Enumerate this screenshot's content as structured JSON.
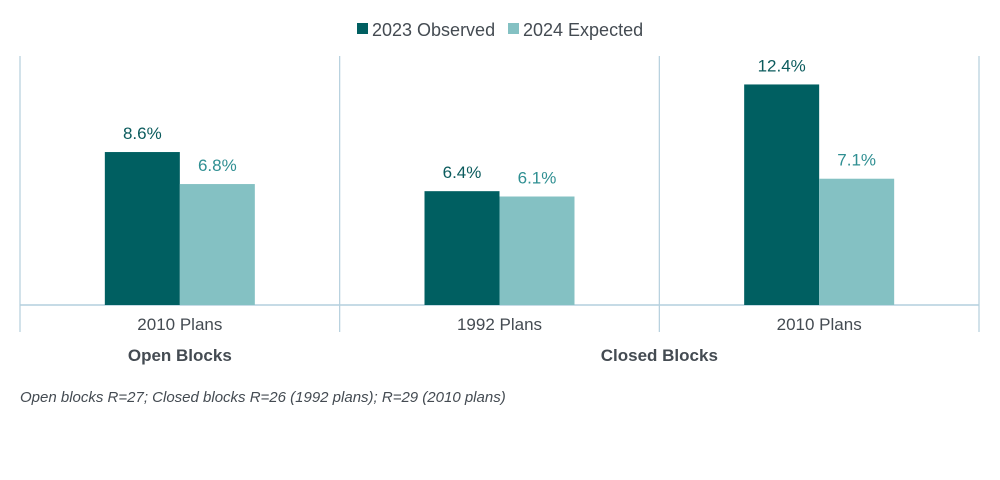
{
  "chart_data": {
    "type": "bar",
    "categories": [
      "2010 Plans",
      "1992 Plans",
      "2010 Plans"
    ],
    "groups": [
      {
        "label": "Open Blocks",
        "categories": [
          0
        ]
      },
      {
        "label": "Closed Blocks",
        "categories": [
          1,
          2
        ]
      }
    ],
    "series": [
      {
        "name": "2023 Observed",
        "color": "#005f61",
        "values": [
          8.6,
          6.4,
          12.4
        ],
        "labels": [
          "8.6%",
          "6.4%",
          "12.4%"
        ]
      },
      {
        "name": "2024 Expected",
        "color": "#84c1c3",
        "values": [
          6.8,
          6.1,
          7.1
        ],
        "labels": [
          "6.8%",
          "6.1%",
          "7.1%"
        ]
      }
    ],
    "ylim": [
      0,
      14
    ],
    "legend_position": "top-center",
    "grid": false,
    "axis_color": "#b4cfdd",
    "footnote": "Open blocks R=27; Closed blocks R=26 (1992 plans); R=29 (2010 plans)"
  }
}
